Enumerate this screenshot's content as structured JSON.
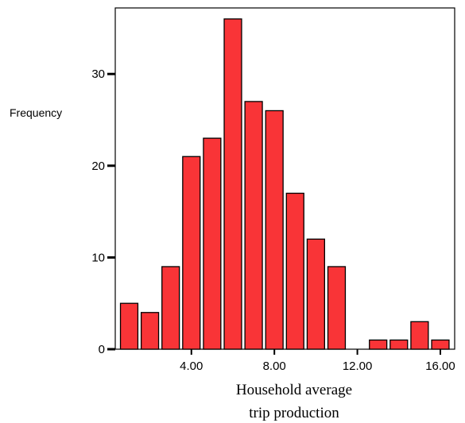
{
  "chart_data": {
    "type": "bar",
    "ylabel": "Frequency",
    "xlabel_lines": [
      "Household average",
      "trip production"
    ],
    "bar_color": "#f93437",
    "bin_width": 1.0,
    "x": [
      1.0,
      2.0,
      3.0,
      4.0,
      5.0,
      6.0,
      7.0,
      8.0,
      9.0,
      10.0,
      11.0,
      12.0,
      13.0,
      14.0,
      15.0,
      16.0
    ],
    "values": [
      5,
      4,
      9,
      21,
      23,
      36,
      27,
      26,
      17,
      12,
      9,
      0,
      1,
      1,
      3,
      1
    ],
    "xlim": [
      0.33,
      16.69
    ],
    "ylim": [
      0,
      37.2
    ],
    "x_ticks": [
      {
        "value": 4,
        "label": "4.00"
      },
      {
        "value": 8,
        "label": "8.00"
      },
      {
        "value": 12,
        "label": "12.00"
      },
      {
        "value": 16,
        "label": "16.00"
      }
    ],
    "y_ticks": [
      {
        "value": 0,
        "label": "0"
      },
      {
        "value": 10,
        "label": "10"
      },
      {
        "value": 20,
        "label": "20"
      },
      {
        "value": 30,
        "label": "30"
      }
    ]
  }
}
